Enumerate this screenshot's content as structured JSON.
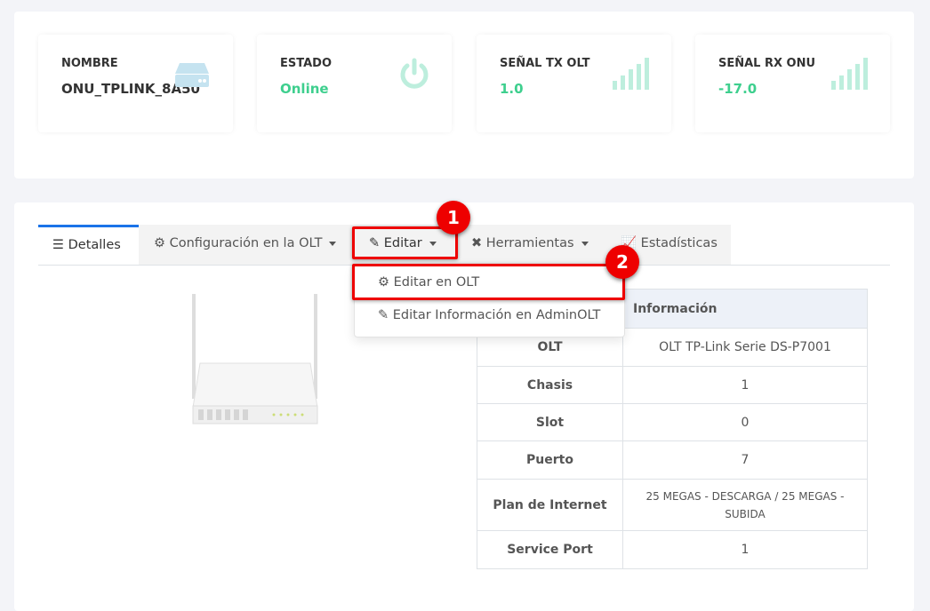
{
  "cards": [
    {
      "label": "NOMBRE",
      "value": "ONU_TPLINK_8A50",
      "icon": "server-icon",
      "color": "#333333"
    },
    {
      "label": "ESTADO",
      "value": "Online",
      "icon": "power-icon",
      "color": "#3ecf8e"
    },
    {
      "label": "SEÑAL TX OLT",
      "value": "1.0",
      "icon": "signal-icon",
      "color": "#3ecf8e"
    },
    {
      "label": "SEÑAL RX ONU",
      "value": "-17.0",
      "icon": "signal-icon",
      "color": "#3ecf8e"
    }
  ],
  "tabs": [
    {
      "label": "Detalles",
      "icon": "list-icon"
    },
    {
      "label": "Configuración en la OLT",
      "icon": "gear-icon"
    },
    {
      "label": "Editar",
      "icon": "edit-icon"
    },
    {
      "label": "Herramientas",
      "icon": "tools-icon"
    },
    {
      "label": "Estadísticas",
      "icon": "chart-icon"
    }
  ],
  "dropdown": [
    {
      "label": "Editar en OLT",
      "icon": "gears-icon"
    },
    {
      "label": "Editar Información en AdminOLT",
      "icon": "edit-icon"
    }
  ],
  "table": {
    "header": [
      "",
      "Información"
    ],
    "rows": [
      [
        "OLT",
        "OLT TP-Link Serie DS-P7001"
      ],
      [
        "Chasis",
        "1"
      ],
      [
        "Slot",
        "0"
      ],
      [
        "Puerto",
        "7"
      ],
      [
        "Plan de Internet",
        "25 MEGAS - DESCARGA / 25 MEGAS - SUBIDA"
      ],
      [
        "Service Port",
        "1"
      ]
    ]
  },
  "annotations": [
    "1",
    "2"
  ]
}
